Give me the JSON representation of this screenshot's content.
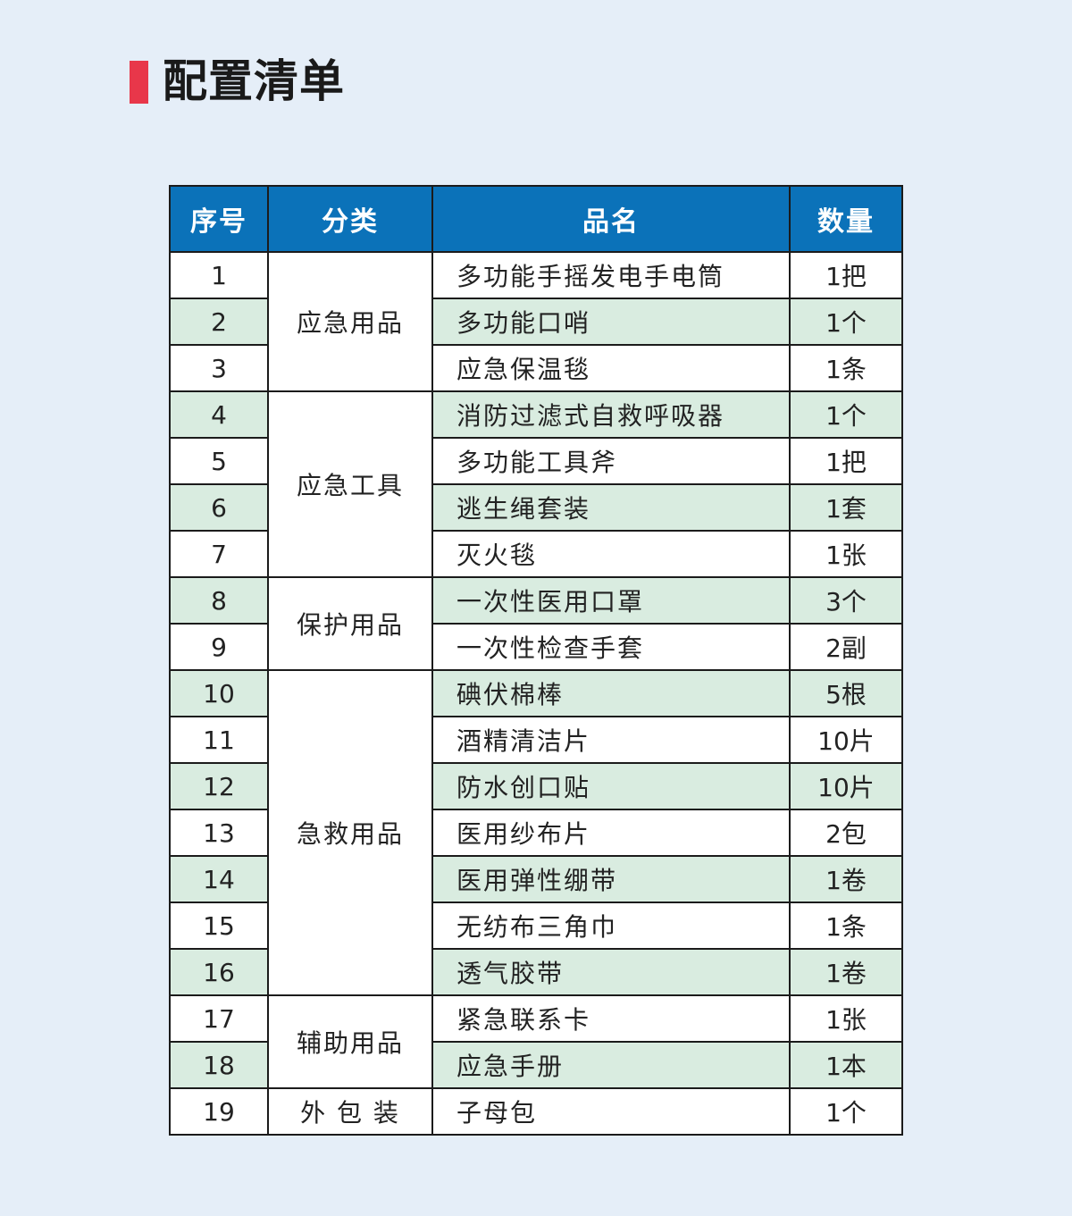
{
  "title": "配置清单",
  "colors": {
    "accent": "#e8374a",
    "header": "#0b72b9",
    "stripe": "#d9ece0",
    "background": "#e5eef8"
  },
  "headers": [
    "序号",
    "分类",
    "品名",
    "数量"
  ],
  "rows": [
    {
      "no": "1",
      "category": "应急用品",
      "span": 3,
      "name": "多功能手摇发电手电筒",
      "qty": "1把"
    },
    {
      "no": "2",
      "name": "多功能口哨",
      "qty": "1个"
    },
    {
      "no": "3",
      "name": "应急保温毯",
      "qty": "1条"
    },
    {
      "no": "4",
      "category": "应急工具",
      "span": 4,
      "name": "消防过滤式自救呼吸器",
      "qty": "1个"
    },
    {
      "no": "5",
      "name": "多功能工具斧",
      "qty": "1把"
    },
    {
      "no": "6",
      "name": "逃生绳套装",
      "qty": "1套"
    },
    {
      "no": "7",
      "name": "灭火毯",
      "qty": "1张"
    },
    {
      "no": "8",
      "category": "保护用品",
      "span": 2,
      "name": "一次性医用口罩",
      "qty": "3个"
    },
    {
      "no": "9",
      "name": "一次性检查手套",
      "qty": "2副"
    },
    {
      "no": "10",
      "category": "急救用品",
      "span": 7,
      "name": "碘伏棉棒",
      "qty": "5根"
    },
    {
      "no": "11",
      "name": "酒精清洁片",
      "qty": "10片"
    },
    {
      "no": "12",
      "name": "防水创口贴",
      "qty": "10片"
    },
    {
      "no": "13",
      "name": "医用纱布片",
      "qty": "2包"
    },
    {
      "no": "14",
      "name": "医用弹性绷带",
      "qty": "1卷"
    },
    {
      "no": "15",
      "name": "无纺布三角巾",
      "qty": "1条"
    },
    {
      "no": "16",
      "name": "透气胶带",
      "qty": "1卷"
    },
    {
      "no": "17",
      "category": "辅助用品",
      "span": 2,
      "name": "紧急联系卡",
      "qty": "1张"
    },
    {
      "no": "18",
      "name": "应急手册",
      "qty": "1本"
    },
    {
      "no": "19",
      "category": "外 包 装",
      "span": 1,
      "name": "子母包",
      "qty": "1个"
    }
  ]
}
